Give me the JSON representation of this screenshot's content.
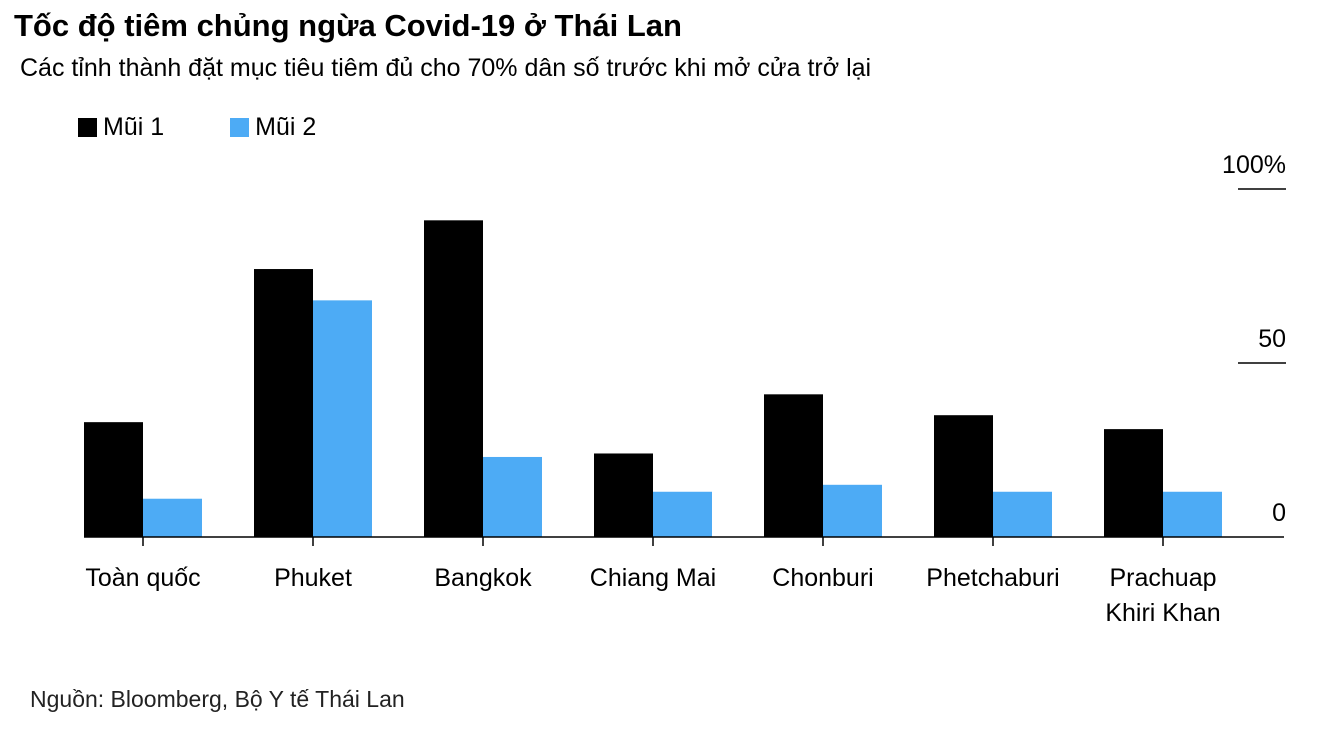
{
  "title": "Tốc độ tiêm chủng ngừa Covid-19 ở Thái Lan",
  "subtitle": "Các tỉnh thành đặt mục tiêu tiêm đủ cho 70% dân số trước khi mở cửa trở lại",
  "source": "Nguồn: Bloomberg, Bộ Y tế Thái Lan",
  "legend": [
    {
      "label": "Mũi 1",
      "color": "#000000"
    },
    {
      "label": "Mũi 2",
      "color": "#4dabf5"
    }
  ],
  "chart_data": {
    "type": "bar",
    "categories": [
      [
        "Toàn quốc"
      ],
      [
        "Phuket"
      ],
      [
        "Bangkok"
      ],
      [
        "Chiang Mai"
      ],
      [
        "Chonburi"
      ],
      [
        "Phetchaburi"
      ],
      [
        "Prachuap",
        "Khiri Khan"
      ]
    ],
    "series": [
      {
        "name": "Mũi 1",
        "color": "#000000",
        "values": [
          33,
          77,
          91,
          24,
          41,
          35,
          31
        ]
      },
      {
        "name": "Mũi 2",
        "color": "#4dabf5",
        "values": [
          11,
          68,
          23,
          13,
          15,
          13,
          13
        ]
      }
    ],
    "yticks": [
      {
        "value": 0,
        "label": "0"
      },
      {
        "value": 50,
        "label": "50"
      },
      {
        "value": 100,
        "label": "100%"
      }
    ],
    "ylim": [
      0,
      100
    ],
    "grid": false,
    "legend_position": "top-left"
  }
}
